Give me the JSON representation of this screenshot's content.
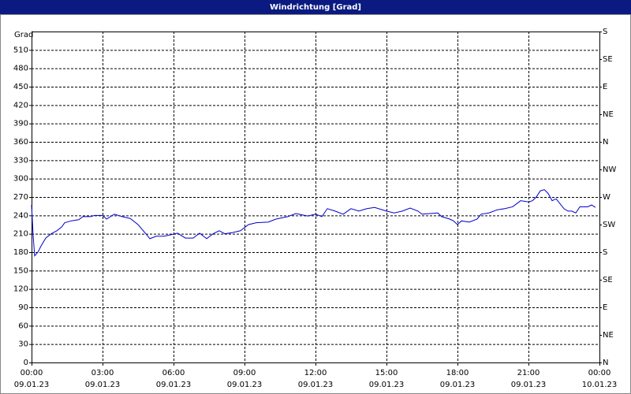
{
  "chart_data": {
    "type": "line",
    "title": "Windrichtung [Grad]",
    "y_label": "Grad",
    "x": [
      0,
      0.07,
      0.13,
      0.27,
      0.4,
      0.6,
      0.83,
      1.07,
      1.27,
      1.4,
      1.67,
      2,
      2.17,
      2.5,
      2.67,
      3,
      3.17,
      3.5,
      3.83,
      4.17,
      4.5,
      4.83,
      5,
      5.27,
      5.6,
      5.83,
      6.17,
      6.5,
      6.83,
      7.1,
      7.4,
      7.67,
      7.93,
      8.17,
      8.5,
      8.83,
      9.17,
      9.5,
      10,
      10.33,
      10.83,
      11.17,
      11.67,
      12,
      12.27,
      12.5,
      12.83,
      13.17,
      13.5,
      13.83,
      14.17,
      14.5,
      15,
      15.33,
      15.67,
      16,
      16.33,
      16.5,
      16.83,
      17.17,
      17.33,
      17.67,
      17.83,
      18,
      18.17,
      18.5,
      18.83,
      19,
      19.33,
      19.67,
      20,
      20.33,
      20.67,
      21,
      21.17,
      21.33,
      21.5,
      21.67,
      21.83,
      22,
      22.17,
      22.5,
      22.67,
      22.83,
      23,
      23.17,
      23.5,
      23.67,
      23.83
    ],
    "series": [
      {
        "name": "Windrichtung",
        "color": "#0000cc",
        "values": [
          257,
          206,
          174,
          180,
          190,
          203,
          210,
          215,
          221,
          228,
          231,
          233,
          238,
          238,
          240,
          240,
          234,
          242,
          238,
          235,
          225,
          210,
          202,
          206,
          206,
          208,
          211,
          203,
          203,
          211,
          202,
          210,
          215,
          210,
          212,
          215,
          225,
          228,
          229,
          234,
          238,
          243,
          239,
          242,
          238,
          251,
          247,
          242,
          251,
          247,
          251,
          253,
          247,
          244,
          247,
          252,
          247,
          242,
          243,
          244,
          238,
          234,
          231,
          225,
          231,
          229,
          234,
          242,
          244,
          249,
          251,
          254,
          264,
          262,
          264,
          270,
          280,
          282,
          276,
          264,
          267,
          251,
          247,
          247,
          244,
          254,
          254,
          257,
          253
        ]
      }
    ],
    "xlim": [
      0,
      24
    ],
    "xticks": [
      {
        "value": 0,
        "label": "00:00"
      },
      {
        "value": 3,
        "label": "03:00"
      },
      {
        "value": 6,
        "label": "06:00"
      },
      {
        "value": 9,
        "label": "09:00"
      },
      {
        "value": 12,
        "label": "12:00"
      },
      {
        "value": 15,
        "label": "15:00"
      },
      {
        "value": 18,
        "label": "18:00"
      },
      {
        "value": 21,
        "label": "21:00"
      },
      {
        "value": 24,
        "label": "00:00"
      }
    ],
    "xtick_dates": [
      "09.01.23",
      "09.01.23",
      "09.01.23",
      "09.01.23",
      "09.01.23",
      "09.01.23",
      "09.01.23",
      "09.01.23",
      "10.01.23"
    ],
    "ylim": [
      0,
      540
    ],
    "yticks": [
      0,
      30,
      60,
      90,
      120,
      150,
      180,
      210,
      240,
      270,
      300,
      330,
      360,
      390,
      420,
      450,
      480,
      510
    ],
    "y2lim": [
      0,
      540
    ],
    "y2ticks": [
      {
        "value": 0,
        "label": "N"
      },
      {
        "value": 45,
        "label": "NE"
      },
      {
        "value": 90,
        "label": "E"
      },
      {
        "value": 135,
        "label": "SE"
      },
      {
        "value": 180,
        "label": "S"
      },
      {
        "value": 225,
        "label": "SW"
      },
      {
        "value": 270,
        "label": "W"
      },
      {
        "value": 315,
        "label": "NW"
      },
      {
        "value": 360,
        "label": "N"
      },
      {
        "value": 405,
        "label": "NE"
      },
      {
        "value": 450,
        "label": "E"
      },
      {
        "value": 495,
        "label": "SE"
      },
      {
        "value": 540,
        "label": "S"
      }
    ],
    "grid": true
  }
}
